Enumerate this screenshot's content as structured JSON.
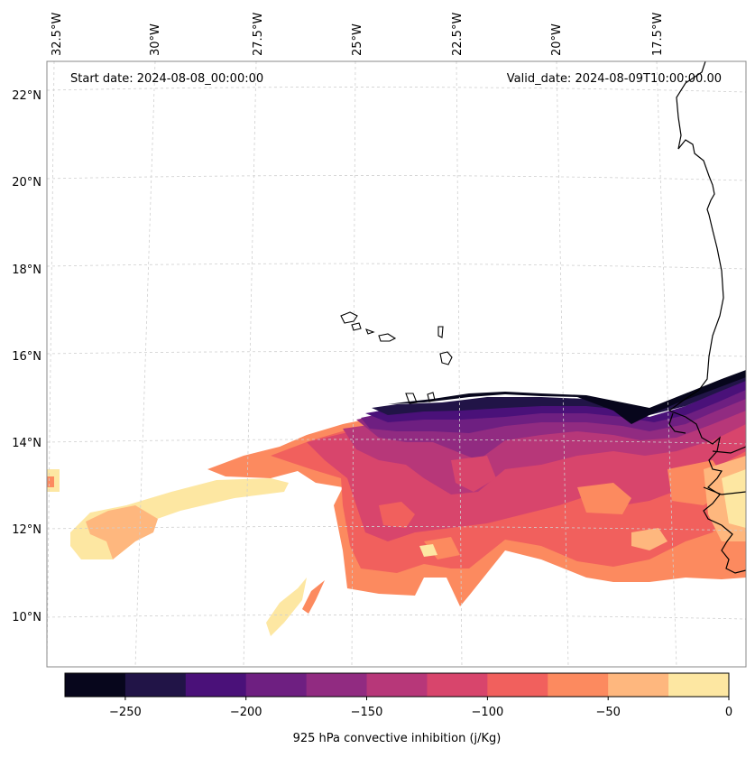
{
  "map": {
    "start_label": "Start date: 2024-08-08_00:00:00",
    "valid_label": "Valid_date: 2024-08-09T10:00:00.00",
    "lon_labels": [
      "32.5°W",
      "30°W",
      "27.5°W",
      "25°W",
      "22.5°W",
      "20°W",
      "17.5°W"
    ],
    "lat_labels": [
      "22°N",
      "20°N",
      "18°N",
      "16°N",
      "14°N",
      "12°N",
      "10°N"
    ]
  },
  "colorbar": {
    "label": "925 hPa convective inhibition (j/Kg)",
    "ticks": [
      "−250",
      "−200",
      "−150",
      "−100",
      "−50",
      "0"
    ],
    "colors": [
      "#07061c",
      "#211447",
      "#4a1179",
      "#6e1f81",
      "#912b81",
      "#b73779",
      "#d8456c",
      "#f1605d",
      "#fc8a5f",
      "#feb77e",
      "#fde7a2"
    ],
    "boundaries": [
      -275,
      -250,
      -225,
      -200,
      -175,
      -150,
      -125,
      -100,
      -75,
      -50,
      -25,
      0
    ]
  }
}
